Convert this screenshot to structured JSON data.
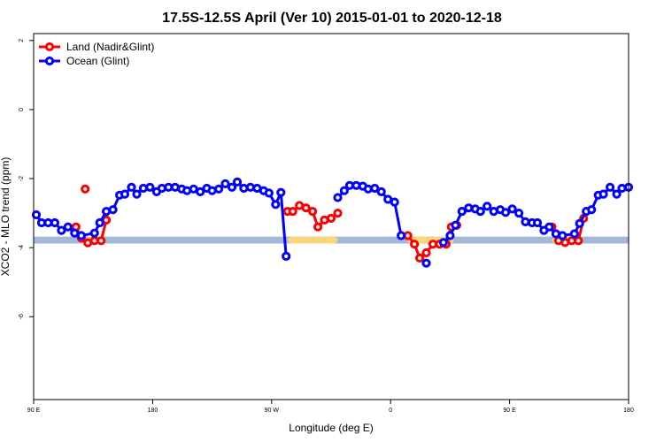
{
  "chart_data": {
    "type": "line",
    "title": "17.5S-12.5S April (Ver 10)   2015-01-01 to 2020-12-18",
    "xlabel": "Longitude (deg E)",
    "ylabel": "XCO2 - MLO trend (ppm)",
    "xlim": [
      90,
      540
    ],
    "ylim": [
      -8.4,
      2.2
    ],
    "xticks": [
      90,
      180,
      270,
      360,
      450,
      540
    ],
    "xtick_labels": [
      "90 E",
      "180",
      "90 W",
      "0",
      "90 E",
      "180"
    ],
    "yticks": [
      2,
      0,
      -2,
      -4,
      -6
    ],
    "yticks_labels": [
      "2",
      "0",
      "-2",
      "-4",
      "-6"
    ],
    "legend_position": "top-left",
    "land_band": {
      "y_from": -3.68,
      "y_to": -3.88,
      "color": "#F9D67A"
    },
    "ocean_band": {
      "y_from": -3.68,
      "y_to": -3.88,
      "color": "#A3B8D8"
    },
    "land_band_segments": [
      [
        130,
        143
      ],
      [
        282,
        320
      ],
      [
        373,
        408
      ],
      [
        482,
        505
      ]
    ],
    "series": [
      {
        "name": "Land (Nadir&Glint)",
        "color": "#FF0000",
        "segments": [
          [
            [
              122,
              -3.4
            ],
            [
              126,
              -3.72
            ],
            [
              131,
              -3.86
            ],
            [
              136,
              -3.8
            ],
            [
              141,
              -3.8
            ],
            [
              145,
              -3.2
            ]
          ],
          [
            [
              129,
              -2.3
            ]
          ],
          [
            [
              282,
              -2.95
            ],
            [
              286,
              -2.95
            ],
            [
              291,
              -2.78
            ],
            [
              296,
              -2.85
            ],
            [
              301,
              -2.95
            ],
            [
              305,
              -3.4
            ],
            [
              310,
              -3.2
            ],
            [
              315,
              -3.15
            ],
            [
              320,
              -3.0
            ]
          ],
          [
            [
              373,
              -3.65
            ],
            [
              378,
              -3.9
            ],
            [
              382,
              -4.3
            ],
            [
              387,
              -4.15
            ],
            [
              392,
              -3.9
            ],
            [
              397,
              -3.9
            ],
            [
              402,
              -3.9
            ],
            [
              406,
              -3.4
            ],
            [
              410,
              -3.35
            ]
          ],
          [
            [
              482,
              -3.4
            ],
            [
              487,
              -3.8
            ],
            [
              492,
              -3.85
            ],
            [
              497,
              -3.8
            ],
            [
              502,
              -3.8
            ],
            [
              506,
              -3.15
            ]
          ]
        ]
      },
      {
        "name": "Ocean (Glint)",
        "color": "#0000FF",
        "segments": [
          [
            [
              92,
              -3.05
            ],
            [
              96,
              -3.28
            ],
            [
              101,
              -3.28
            ],
            [
              106,
              -3.28
            ],
            [
              111,
              -3.5
            ],
            [
              116,
              -3.4
            ],
            [
              121,
              -3.58
            ],
            [
              126,
              -3.65
            ],
            [
              136,
              -3.58
            ],
            [
              140,
              -3.28
            ],
            [
              145,
              -2.95
            ],
            [
              150,
              -2.9
            ],
            [
              155,
              -2.48
            ],
            [
              159,
              -2.45
            ],
            [
              164,
              -2.25
            ],
            [
              168,
              -2.45
            ],
            [
              173,
              -2.28
            ],
            [
              178,
              -2.25
            ],
            [
              183,
              -2.38
            ],
            [
              187,
              -2.28
            ],
            [
              192,
              -2.25
            ],
            [
              197,
              -2.25
            ],
            [
              202,
              -2.3
            ],
            [
              206,
              -2.35
            ],
            [
              211,
              -2.3
            ],
            [
              216,
              -2.38
            ],
            [
              221,
              -2.28
            ],
            [
              225,
              -2.35
            ],
            [
              230,
              -2.3
            ],
            [
              235,
              -2.15
            ],
            [
              240,
              -2.25
            ],
            [
              244,
              -2.1
            ],
            [
              249,
              -2.28
            ],
            [
              254,
              -2.25
            ],
            [
              259,
              -2.28
            ],
            [
              264,
              -2.35
            ],
            [
              268,
              -2.42
            ],
            [
              273,
              -2.75
            ],
            [
              277,
              -2.4
            ],
            [
              281,
              -4.25
            ]
          ],
          [
            [
              320,
              -2.55
            ],
            [
              325,
              -2.35
            ],
            [
              329,
              -2.2
            ],
            [
              334,
              -2.2
            ],
            [
              339,
              -2.22
            ],
            [
              343,
              -2.3
            ],
            [
              348,
              -2.28
            ],
            [
              353,
              -2.38
            ],
            [
              358,
              -2.6
            ],
            [
              363,
              -2.68
            ],
            [
              368,
              -3.65
            ]
          ],
          [
            [
              387,
              -4.45
            ]
          ],
          [
            [
              400,
              -3.85
            ],
            [
              405,
              -3.65
            ],
            [
              409,
              -3.35
            ],
            [
              414,
              -2.95
            ],
            [
              419,
              -2.85
            ],
            [
              424,
              -2.88
            ],
            [
              428,
              -2.95
            ],
            [
              433,
              -2.8
            ],
            [
              438,
              -2.95
            ],
            [
              443,
              -2.9
            ],
            [
              447,
              -2.98
            ],
            [
              452,
              -2.88
            ],
            [
              457,
              -3.0
            ],
            [
              462,
              -3.25
            ],
            [
              467,
              -3.28
            ],
            [
              471,
              -3.28
            ],
            [
              476,
              -3.5
            ],
            [
              480,
              -3.4
            ],
            [
              485,
              -3.6
            ],
            [
              490,
              -3.65
            ],
            [
              499,
              -3.6
            ],
            [
              503,
              -3.3
            ],
            [
              508,
              -2.95
            ],
            [
              512,
              -2.9
            ],
            [
              517,
              -2.48
            ],
            [
              521,
              -2.45
            ],
            [
              526,
              -2.25
            ],
            [
              531,
              -2.45
            ],
            [
              535,
              -2.28
            ],
            [
              540,
              -2.25
            ]
          ]
        ]
      }
    ]
  }
}
